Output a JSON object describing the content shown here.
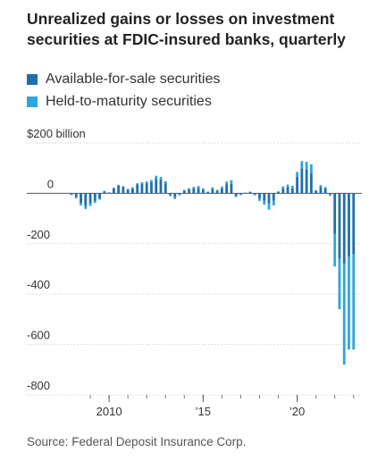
{
  "title": "Unrealized gains or losses on investment securities at FDIC-insured banks, quarterly",
  "source": "Source: Federal Deposit Insurance Corp.",
  "chart_data": {
    "type": "bar",
    "stacked": true,
    "y_unit_label": "$200 billion",
    "ylim": [
      -800,
      200
    ],
    "yticks": [
      {
        "value": 200,
        "label": "$200 billion"
      },
      {
        "value": 0,
        "label": "0"
      },
      {
        "value": -200,
        "label": "-200"
      },
      {
        "value": -400,
        "label": "-400"
      },
      {
        "value": -600,
        "label": "-600"
      },
      {
        "value": -800,
        "label": "-800"
      }
    ],
    "xlim": [
      2008.0,
      2023.25
    ],
    "xticks": [
      {
        "value": 2010,
        "label": "2010"
      },
      {
        "value": 2015,
        "label": "’15"
      },
      {
        "value": 2020,
        "label": "’20"
      }
    ],
    "grid": true,
    "legend_position": "top-left",
    "series": [
      {
        "name": "Available-for-sale securities",
        "color": "#1f6fa8",
        "values": [
          [
            2008.0,
            -5
          ],
          [
            2008.25,
            -15
          ],
          [
            2008.5,
            -38
          ],
          [
            2008.75,
            -50
          ],
          [
            2009.0,
            -40
          ],
          [
            2009.25,
            -30
          ],
          [
            2009.5,
            -20
          ],
          [
            2009.75,
            8
          ],
          [
            2010.0,
            3
          ],
          [
            2010.25,
            20
          ],
          [
            2010.5,
            30
          ],
          [
            2010.75,
            25
          ],
          [
            2011.0,
            15
          ],
          [
            2011.25,
            20
          ],
          [
            2011.5,
            35
          ],
          [
            2011.75,
            38
          ],
          [
            2012.0,
            40
          ],
          [
            2012.25,
            45
          ],
          [
            2012.5,
            58
          ],
          [
            2012.75,
            55
          ],
          [
            2013.0,
            40
          ],
          [
            2013.25,
            -8
          ],
          [
            2013.5,
            -15
          ],
          [
            2013.75,
            -5
          ],
          [
            2014.0,
            10
          ],
          [
            2014.25,
            15
          ],
          [
            2014.5,
            20
          ],
          [
            2014.75,
            22
          ],
          [
            2015.0,
            15
          ],
          [
            2015.25,
            5
          ],
          [
            2015.5,
            18
          ],
          [
            2015.75,
            10
          ],
          [
            2016.0,
            20
          ],
          [
            2016.25,
            35
          ],
          [
            2016.5,
            38
          ],
          [
            2016.75,
            -10
          ],
          [
            2017.0,
            -5
          ],
          [
            2017.25,
            2
          ],
          [
            2017.5,
            5
          ],
          [
            2017.75,
            -5
          ],
          [
            2018.0,
            -20
          ],
          [
            2018.25,
            -30
          ],
          [
            2018.5,
            -40
          ],
          [
            2018.75,
            -30
          ],
          [
            2019.0,
            5
          ],
          [
            2019.25,
            20
          ],
          [
            2019.5,
            25
          ],
          [
            2019.75,
            20
          ],
          [
            2020.0,
            65
          ],
          [
            2020.25,
            100
          ],
          [
            2020.5,
            95
          ],
          [
            2020.75,
            80
          ],
          [
            2021.0,
            10
          ],
          [
            2021.25,
            25
          ],
          [
            2021.5,
            20
          ],
          [
            2021.75,
            -5
          ],
          [
            2022.0,
            -160
          ],
          [
            2022.25,
            -260
          ],
          [
            2022.5,
            -280
          ],
          [
            2022.75,
            -250
          ],
          [
            2023.0,
            -240
          ]
        ]
      },
      {
        "name": "Held-to-maturity securities",
        "color": "#2fa5dc",
        "values": [
          [
            2008.0,
            -2
          ],
          [
            2008.25,
            -5
          ],
          [
            2008.5,
            -10
          ],
          [
            2008.75,
            -12
          ],
          [
            2009.0,
            -10
          ],
          [
            2009.25,
            -8
          ],
          [
            2009.5,
            -5
          ],
          [
            2009.75,
            2
          ],
          [
            2010.0,
            1
          ],
          [
            2010.25,
            3
          ],
          [
            2010.5,
            4
          ],
          [
            2010.75,
            4
          ],
          [
            2011.0,
            3
          ],
          [
            2011.25,
            4
          ],
          [
            2011.5,
            5
          ],
          [
            2011.75,
            6
          ],
          [
            2012.0,
            7
          ],
          [
            2012.25,
            8
          ],
          [
            2012.5,
            12
          ],
          [
            2012.75,
            10
          ],
          [
            2013.0,
            8
          ],
          [
            2013.25,
            -3
          ],
          [
            2013.5,
            -8
          ],
          [
            2013.75,
            -3
          ],
          [
            2014.0,
            4
          ],
          [
            2014.25,
            5
          ],
          [
            2014.5,
            6
          ],
          [
            2014.75,
            7
          ],
          [
            2015.0,
            5
          ],
          [
            2015.25,
            2
          ],
          [
            2015.5,
            6
          ],
          [
            2015.75,
            4
          ],
          [
            2016.0,
            7
          ],
          [
            2016.25,
            12
          ],
          [
            2016.5,
            14
          ],
          [
            2016.75,
            -5
          ],
          [
            2017.0,
            -2
          ],
          [
            2017.25,
            1
          ],
          [
            2017.5,
            2
          ],
          [
            2017.75,
            -3
          ],
          [
            2018.0,
            -10
          ],
          [
            2018.25,
            -15
          ],
          [
            2018.5,
            -25
          ],
          [
            2018.75,
            -18
          ],
          [
            2019.0,
            3
          ],
          [
            2019.25,
            8
          ],
          [
            2019.5,
            10
          ],
          [
            2019.75,
            10
          ],
          [
            2020.0,
            20
          ],
          [
            2020.25,
            28
          ],
          [
            2020.5,
            30
          ],
          [
            2020.75,
            35
          ],
          [
            2021.0,
            3
          ],
          [
            2021.25,
            8
          ],
          [
            2021.5,
            5
          ],
          [
            2021.75,
            -5
          ],
          [
            2022.0,
            -130
          ],
          [
            2022.25,
            -200
          ],
          [
            2022.5,
            -400
          ],
          [
            2022.75,
            -370
          ],
          [
            2023.0,
            -380
          ]
        ]
      }
    ]
  }
}
